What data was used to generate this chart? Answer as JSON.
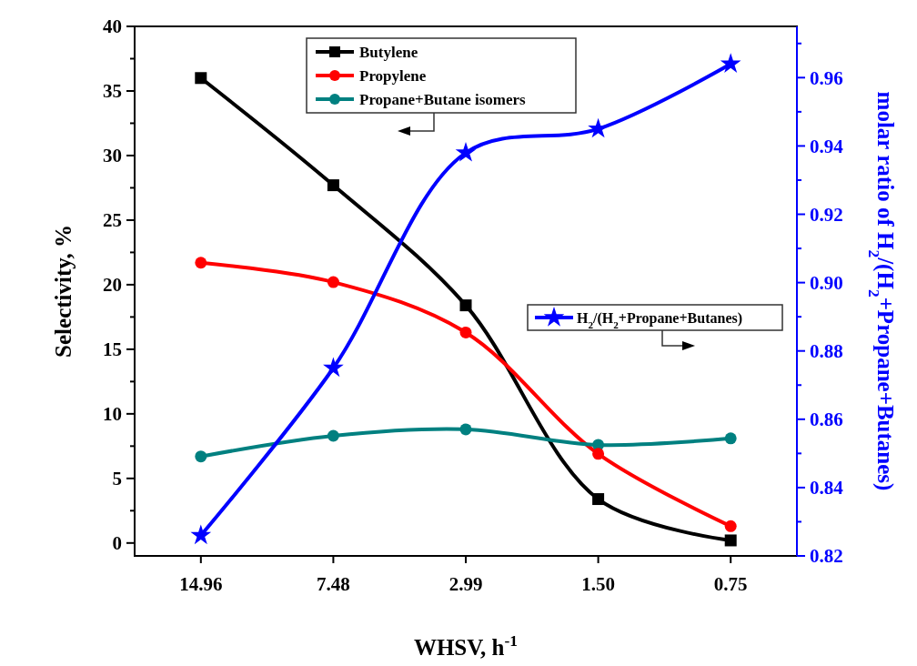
{
  "chart_data": {
    "type": "line",
    "xlabel": "WHSV, h$^{-1}$",
    "ylabel": "Selectivity, %",
    "y2label": "molar ratio of H$_{2}$/(H$_{2}$+Propane+Butanes)",
    "categories": [
      "14.96",
      "7.48",
      "2.99",
      "1.50",
      "0.75"
    ],
    "ylim": [
      -1,
      40
    ],
    "yticks": [
      0,
      {
        "value": 2.5,
        "label": null
      },
      5,
      {
        "value": 7.5,
        "label": null
      },
      10,
      {
        "value": 12.5,
        "label": null
      },
      15,
      {
        "value": 17.5,
        "label": null
      },
      20,
      {
        "value": 22.5,
        "label": null
      },
      25,
      {
        "value": 27.5,
        "label": null
      },
      30,
      {
        "value": 32.5,
        "label": null
      },
      35,
      {
        "value": 37.5,
        "label": null
      },
      40
    ],
    "y2lim": [
      0.82,
      0.975
    ],
    "y2ticks": [
      0.82,
      {
        "value": 0.83,
        "label": null
      },
      0.84,
      {
        "value": 0.85,
        "label": null
      },
      0.86,
      {
        "value": 0.87,
        "label": null
      },
      0.88,
      {
        "value": 0.89,
        "label": null
      },
      {
        "value": 0.9,
        "label": "0.90"
      },
      {
        "value": 0.91,
        "label": null
      },
      0.92,
      {
        "value": 0.93,
        "label": null
      },
      0.94,
      {
        "value": 0.95,
        "label": null
      },
      0.96,
      {
        "value": 0.97,
        "label": null
      }
    ],
    "legend": "top",
    "grid": false,
    "line_style": "solid",
    "series": [
      {
        "name": "Butylene",
        "color": "#000000",
        "marker": "square",
        "values": [
          36.0,
          27.7,
          18.4,
          3.4,
          0.2
        ]
      },
      {
        "name": "Propylene",
        "color": "#ff0000",
        "marker": "circle",
        "values": [
          21.7,
          20.2,
          16.3,
          6.9,
          1.3
        ]
      },
      {
        "name": "Propane+Butane isomers",
        "color": "#008080",
        "marker": "circle",
        "values": [
          6.7,
          8.3,
          8.8,
          7.6,
          8.1
        ]
      },
      {
        "name": "H$_{2}$/(H$_{2}$+Propane+Butanes)",
        "color": "#0000ff",
        "marker": "star",
        "axis": "y2",
        "values": [
          0.826,
          0.875,
          0.938,
          0.945,
          0.964
        ]
      }
    ]
  }
}
